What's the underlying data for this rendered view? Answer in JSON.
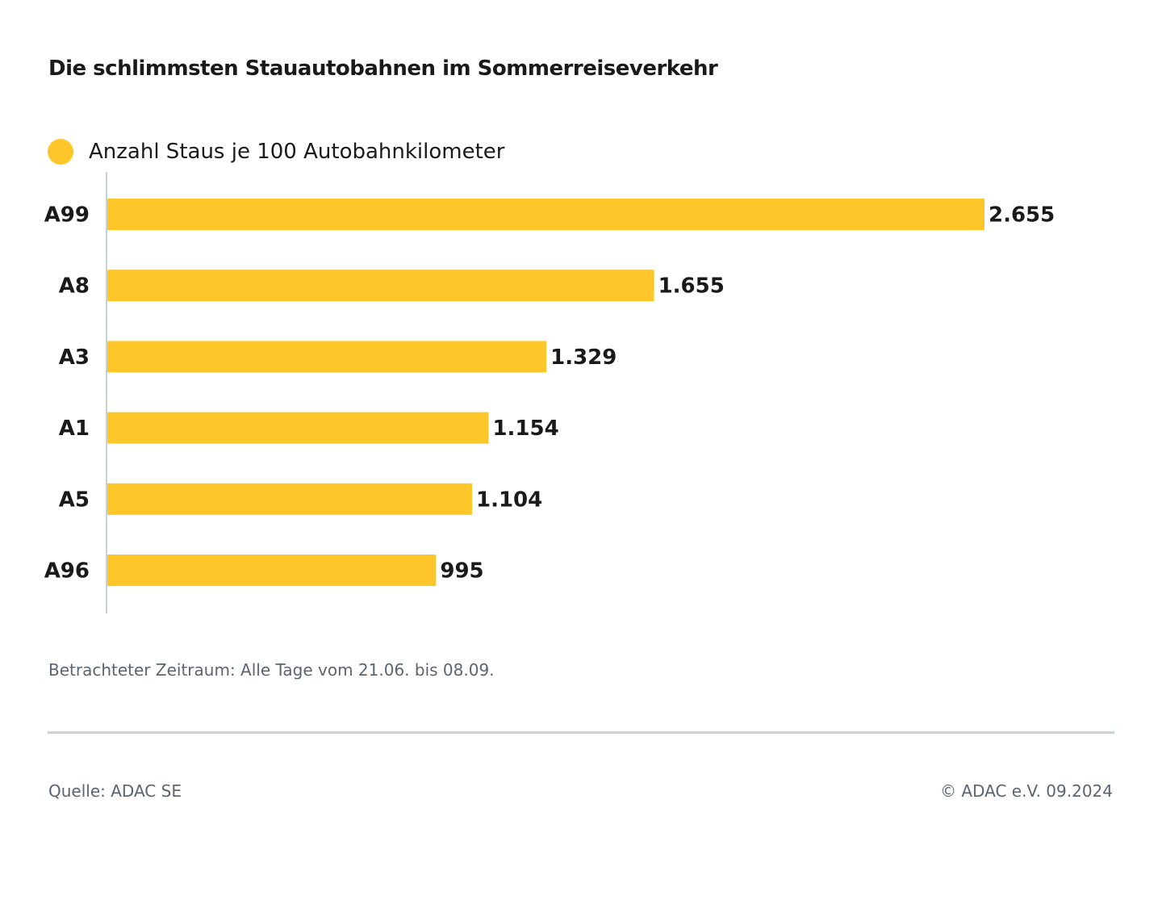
{
  "chart_data": {
    "type": "bar",
    "orientation": "horizontal",
    "title": "Die schlimmsten Stauautobahnen im Sommerreiseverkehr",
    "categories": [
      "A99",
      "A8",
      "A3",
      "A1",
      "A5",
      "A96"
    ],
    "series": [
      {
        "name": "Anzahl Staus je 100 Autobahnkilometer",
        "values": [
          2655,
          1655,
          1329,
          1154,
          1104,
          995
        ],
        "color": "#FFC629"
      }
    ],
    "data_labels": [
      "2.655",
      "1.655",
      "1.329",
      "1.154",
      "1.104",
      "995"
    ],
    "xlim": [
      0,
      2655
    ],
    "grid": false,
    "legend_position": "top-left"
  },
  "note": "Betrachteter Zeitraum: Alle Tage vom 21.06. bis 08.09.",
  "source": "Quelle: ADAC SE",
  "copyright": "© ADAC e.V. 09.2024"
}
